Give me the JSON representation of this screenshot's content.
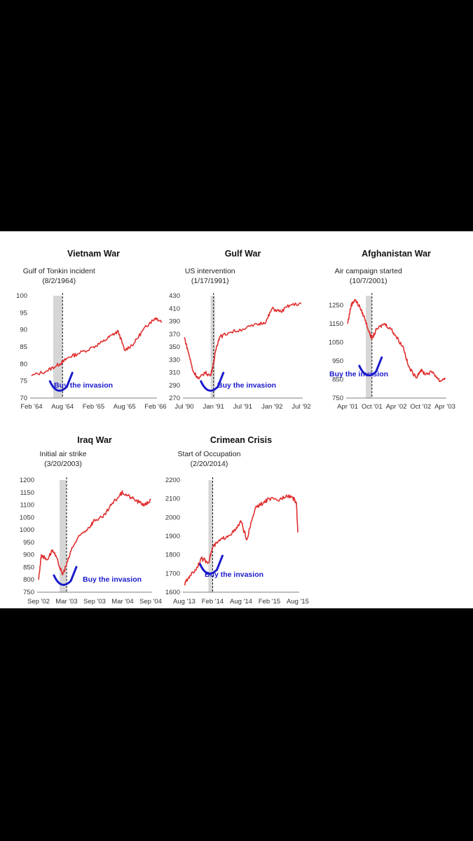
{
  "chart_data": [
    {
      "type": "line",
      "title": "Vietnam War",
      "event_label": [
        "Gulf of Tonkin incident",
        "(8/2/1964)"
      ],
      "annotation": "Buy the invasion",
      "line_color": "#e03030",
      "annotation_color": "#1a1acc",
      "ylim": [
        70,
        100
      ],
      "yticks": [
        100,
        95,
        90,
        85,
        80,
        75,
        70
      ],
      "xticks": [
        "Feb '64",
        "Aug '64",
        "Feb '65",
        "Aug '65",
        "Feb '66"
      ],
      "event_x": 1.0,
      "shaded": [
        0.7,
        1.0
      ],
      "series": [
        {
          "x": [
            0,
            0.5,
            0.8,
            1.0,
            1.2,
            1.5,
            2.0,
            2.3,
            2.6,
            2.8,
            3.0,
            3.3,
            3.6,
            3.8,
            4.0,
            4.2
          ],
          "values": [
            76.5,
            78,
            79.5,
            80.5,
            82,
            83,
            85,
            86.5,
            88.5,
            89.5,
            84,
            86,
            90,
            92,
            93.5,
            92.5
          ]
        }
      ]
    },
    {
      "type": "line",
      "title": "Gulf War",
      "event_label": [
        "US intervention",
        "(1/17/1991)"
      ],
      "annotation": "Buy the invasion",
      "line_color": "#e03030",
      "annotation_color": "#1a1acc",
      "ylim": [
        270,
        430
      ],
      "yticks": [
        430,
        410,
        390,
        370,
        350,
        330,
        310,
        290,
        270
      ],
      "xticks": [
        "Jul '90",
        "Jan '91",
        "Jul '91",
        "Jan '92",
        "Jul '92"
      ],
      "event_x": 1.0,
      "shaded": [
        0.9,
        1.05
      ],
      "series": [
        {
          "x": [
            0,
            0.15,
            0.3,
            0.5,
            0.7,
            0.9,
            1.0,
            1.1,
            1.2,
            1.5,
            2.0,
            2.5,
            2.8,
            3.0,
            3.3,
            3.6,
            4.0
          ],
          "values": [
            365,
            340,
            312,
            300,
            310,
            305,
            325,
            350,
            365,
            372,
            378,
            385,
            390,
            410,
            405,
            415,
            418
          ]
        }
      ]
    },
    {
      "type": "line",
      "title": "Afghanistan War",
      "event_label": [
        "Air campaign started",
        "(10/7/2001)"
      ],
      "annotation": "Buy the invasion",
      "line_color": "#e03030",
      "annotation_color": "#1a1acc",
      "ylim": [
        750,
        1300
      ],
      "yticks": [
        1250,
        1150,
        1050,
        950,
        850,
        750
      ],
      "xticks": [
        "Apr '01",
        "Oct '01",
        "Apr '02",
        "Oct '02",
        "Apr '03"
      ],
      "event_x": 1.0,
      "shaded": [
        0.75,
        1.0
      ],
      "series": [
        {
          "x": [
            0,
            0.15,
            0.3,
            0.5,
            0.7,
            0.9,
            1.0,
            1.2,
            1.5,
            1.8,
            2.0,
            2.3,
            2.5,
            2.8,
            3.0,
            3.2,
            3.5,
            3.8,
            4.0
          ],
          "values": [
            1150,
            1250,
            1280,
            1240,
            1180,
            1100,
            1070,
            1120,
            1150,
            1120,
            1080,
            1020,
            920,
            860,
            900,
            880,
            890,
            840,
            860
          ]
        }
      ]
    },
    {
      "type": "line",
      "title": "Iraq War",
      "event_label": [
        "Initial air strike",
        "(3/20/2003)"
      ],
      "annotation": "Buy the invasion",
      "line_color": "#e03030",
      "annotation_color": "#1a1acc",
      "ylim": [
        750,
        1200
      ],
      "yticks": [
        1200,
        1150,
        1100,
        1050,
        1000,
        950,
        900,
        850,
        800,
        750
      ],
      "xticks": [
        "Sep '02",
        "Mar '03",
        "Sep '03",
        "Mar '04",
        "Sep '04"
      ],
      "event_x": 1.0,
      "shaded": [
        0.75,
        1.0
      ],
      "series": [
        {
          "x": [
            0,
            0.1,
            0.3,
            0.5,
            0.7,
            0.85,
            1.0,
            1.2,
            1.5,
            1.8,
            2.0,
            2.3,
            2.6,
            2.9,
            3.0,
            3.3,
            3.6,
            3.8,
            4.0
          ],
          "values": [
            800,
            900,
            880,
            920,
            870,
            820,
            860,
            930,
            980,
            1010,
            1040,
            1050,
            1100,
            1140,
            1150,
            1130,
            1110,
            1100,
            1120
          ]
        }
      ]
    },
    {
      "type": "line",
      "title": "Crimean Crisis",
      "event_label": [
        "Start of Occupation",
        "(2/20/2014)"
      ],
      "annotation": "Buy the invasion",
      "line_color": "#e03030",
      "annotation_color": "#1a1acc",
      "ylim": [
        1600,
        2200
      ],
      "yticks": [
        2200,
        2100,
        2000,
        1900,
        1800,
        1700,
        1600
      ],
      "xticks": [
        "Aug '13",
        "Feb '14",
        "Aug '14",
        "Feb '15",
        "Aug '15"
      ],
      "event_x": 1.0,
      "shaded": [
        0.85,
        1.0
      ],
      "series": [
        {
          "x": [
            0,
            0.2,
            0.4,
            0.6,
            0.85,
            1.0,
            1.2,
            1.5,
            1.8,
            2.0,
            2.2,
            2.5,
            2.8,
            3.0,
            3.3,
            3.6,
            3.8,
            3.95,
            4.0
          ],
          "values": [
            1640,
            1690,
            1720,
            1780,
            1760,
            1840,
            1870,
            1900,
            1930,
            1980,
            1880,
            2050,
            2080,
            2100,
            2090,
            2120,
            2110,
            2080,
            1920
          ]
        }
      ]
    }
  ]
}
